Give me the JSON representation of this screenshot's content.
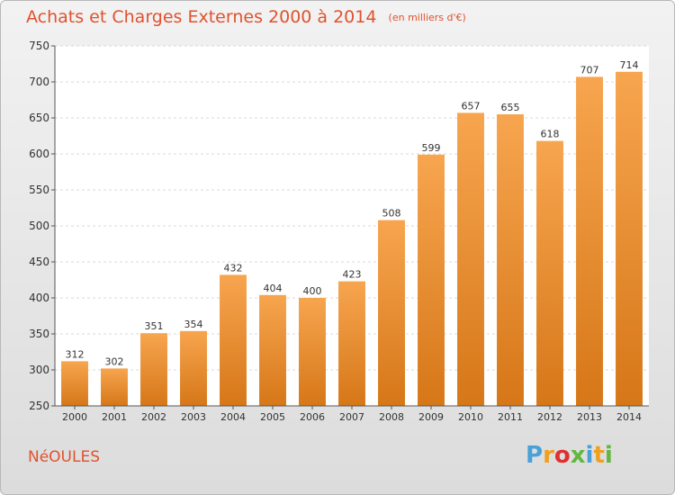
{
  "header": {
    "title": "Achats et Charges Externes 2000 à 2014",
    "subtitle": "(en milliers d'€)"
  },
  "footer": {
    "commune": "NéOULES",
    "logo_letters": [
      "P",
      "r",
      "o",
      "x",
      "i",
      "t",
      "i"
    ],
    "logo_colors": [
      "#4aa0d8",
      "#f0a020",
      "#e03030",
      "#60b840",
      "#4aa0d8",
      "#f0a020",
      "#60b840"
    ]
  },
  "colors": {
    "bar_light": "#f7a54f",
    "bar_dark": "#d67718",
    "accent_text": "#e0522d"
  },
  "chart_data": {
    "type": "bar",
    "categories": [
      "2000",
      "2001",
      "2002",
      "2003",
      "2004",
      "2005",
      "2006",
      "2007",
      "2008",
      "2009",
      "2010",
      "2011",
      "2012",
      "2013",
      "2014"
    ],
    "values": [
      312,
      302,
      351,
      354,
      432,
      404,
      400,
      423,
      508,
      599,
      657,
      655,
      618,
      707,
      714
    ],
    "title": "Achats et Charges Externes 2000 à 2014",
    "ylabel": "",
    "xlabel": "",
    "ylim": [
      250,
      750
    ],
    "yticks": [
      250,
      300,
      350,
      400,
      450,
      500,
      550,
      600,
      650,
      700,
      750
    ],
    "grid": true,
    "legend": "none"
  }
}
